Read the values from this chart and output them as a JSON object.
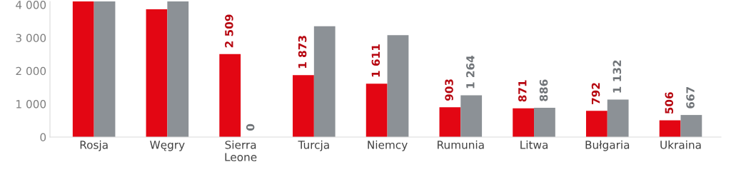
{
  "chart_data": {
    "type": "bar",
    "categories": [
      "Rosja",
      "Węgry",
      "Sierra\nLeone",
      "Turcja",
      "Niemcy",
      "Rumunia",
      "Litwa",
      "Bułgaria",
      "Ukraina"
    ],
    "series": [
      {
        "color": "#e30613",
        "values": [
          4100,
          3860,
          2509,
          1873,
          1611,
          903,
          871,
          792,
          506
        ],
        "value_labels": [
          null,
          null,
          "2 509",
          "1 873",
          "1 611",
          "903",
          "871",
          "792",
          "506"
        ]
      },
      {
        "color": "#8c9196",
        "values": [
          4100,
          4100,
          0,
          3350,
          3080,
          1264,
          886,
          1132,
          667
        ],
        "value_labels": [
          null,
          null,
          "0",
          null,
          null,
          "1 264",
          "886",
          "1 132",
          "667"
        ]
      }
    ],
    "ylim": [
      0,
      4100
    ],
    "yticks": [
      0,
      {
        "value": 1000,
        "label": "1 000"
      },
      {
        "value": 2000,
        "label": "2 000"
      },
      {
        "value": 3000,
        "label": "3 000"
      },
      {
        "value": 4000,
        "label": "4 000"
      }
    ],
    "grid": false,
    "legend": false
  }
}
